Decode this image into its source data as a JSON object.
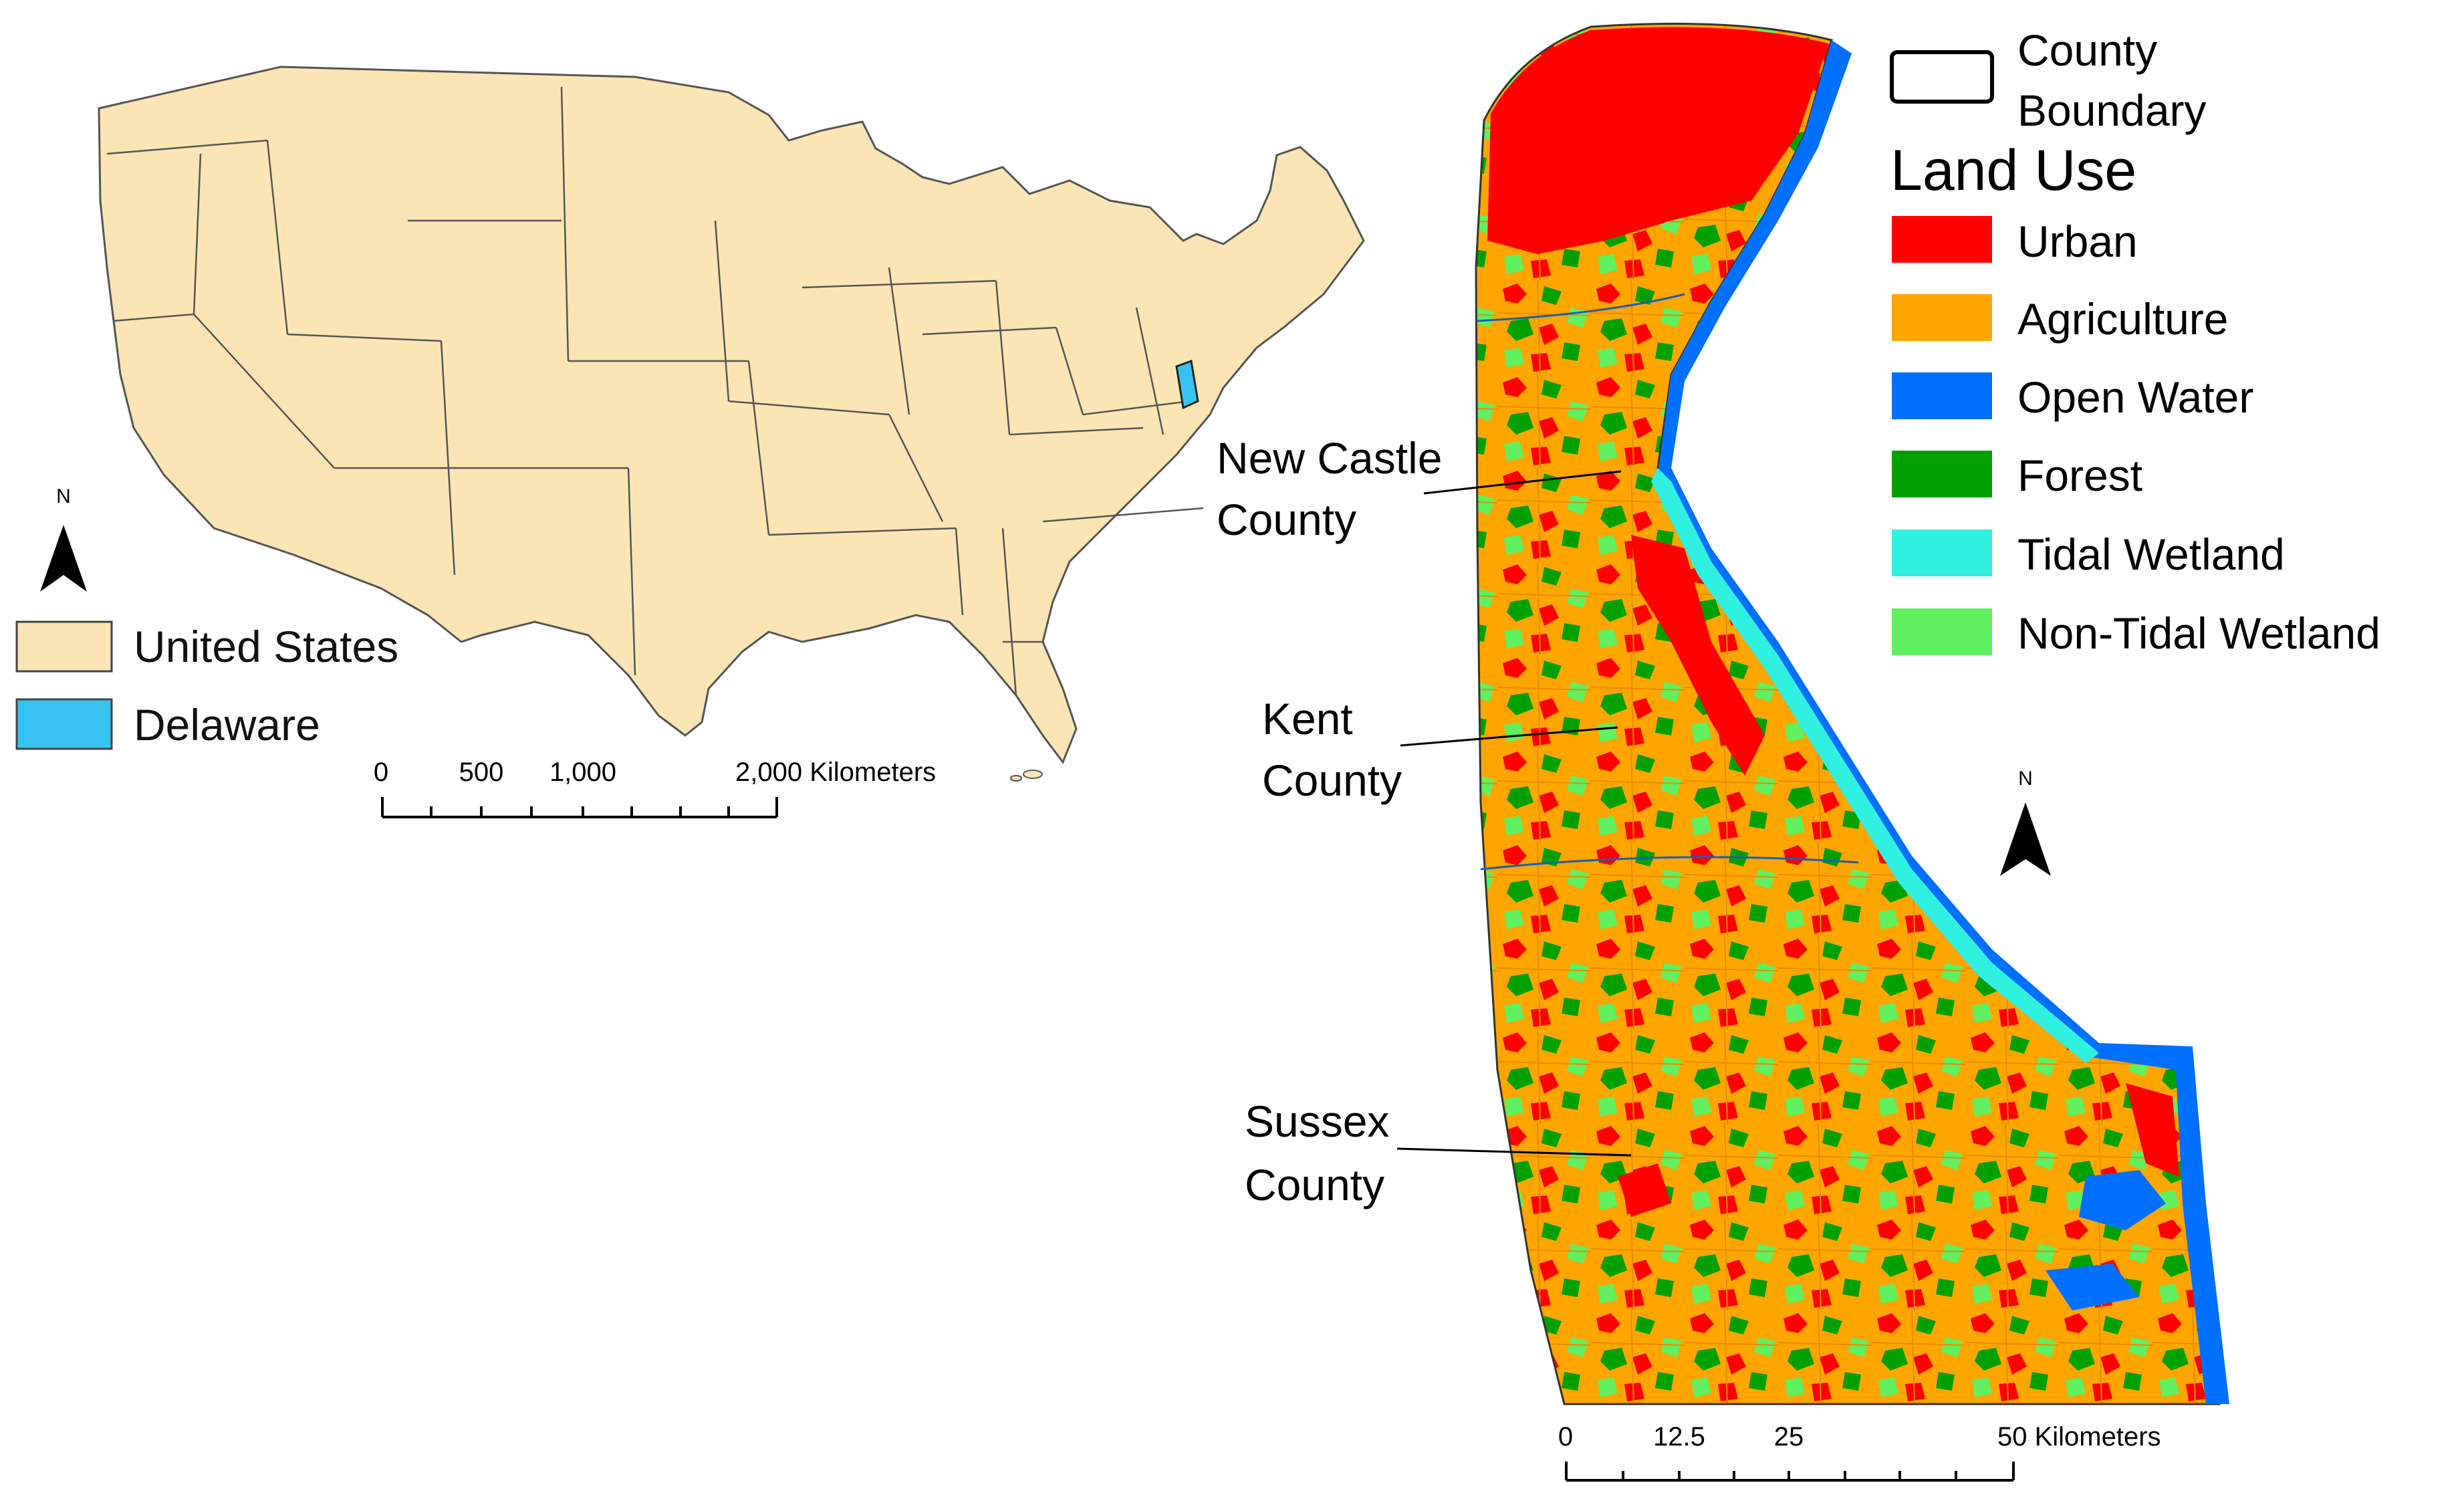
{
  "us_legend": {
    "items": [
      {
        "label": "United States",
        "color": "#fbe5b5"
      },
      {
        "label": "Delaware",
        "color": "#36c3ef"
      }
    ]
  },
  "us_scale": {
    "ticks": [
      "0",
      "500",
      "1,000",
      "2,000 Kilometers"
    ]
  },
  "north_arrow": {
    "label": "N"
  },
  "county_labels": {
    "new_castle": {
      "line1": "New Castle",
      "line2": "County"
    },
    "kent": {
      "line1": "Kent",
      "line2": "County"
    },
    "sussex": {
      "line1": "Sussex",
      "line2": "County"
    }
  },
  "de_legend": {
    "boundary": {
      "line1": "County",
      "line2": "Boundary"
    },
    "title": "Land Use",
    "items": [
      {
        "label": "Urban",
        "color": "#ff0000"
      },
      {
        "label": "Agriculture",
        "color": "#ffa500"
      },
      {
        "label": "Open Water",
        "color": "#0070ff"
      },
      {
        "label": "Forest",
        "color": "#00a000"
      },
      {
        "label": "Tidal Wetland",
        "color": "#30f0e0"
      },
      {
        "label": "Non-Tidal Wetland",
        "color": "#60f060"
      }
    ]
  },
  "de_scale": {
    "ticks": [
      "0",
      "12.5",
      "25",
      "50 Kilometers"
    ]
  }
}
